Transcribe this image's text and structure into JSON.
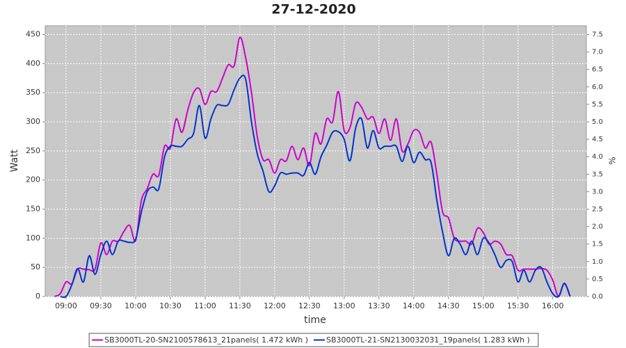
{
  "chart_data": {
    "type": "line",
    "title": "27-12-2020",
    "x_label": "time",
    "y_label": "Watt",
    "y2_label": "%",
    "x": [
      "08:50",
      "08:55",
      "09:00",
      "09:05",
      "09:10",
      "09:15",
      "09:20",
      "09:25",
      "09:30",
      "09:35",
      "09:40",
      "09:45",
      "09:50",
      "09:55",
      "10:00",
      "10:05",
      "10:10",
      "10:15",
      "10:20",
      "10:25",
      "10:30",
      "10:35",
      "10:40",
      "10:45",
      "10:50",
      "10:55",
      "11:00",
      "11:05",
      "11:10",
      "11:15",
      "11:20",
      "11:25",
      "11:30",
      "11:35",
      "11:40",
      "11:45",
      "11:50",
      "11:55",
      "12:00",
      "12:05",
      "12:10",
      "12:15",
      "12:20",
      "12:25",
      "12:30",
      "12:35",
      "12:40",
      "12:45",
      "12:50",
      "12:55",
      "13:00",
      "13:05",
      "13:10",
      "13:15",
      "13:20",
      "13:25",
      "13:30",
      "13:35",
      "13:40",
      "13:45",
      "13:50",
      "13:55",
      "14:00",
      "14:05",
      "14:10",
      "14:15",
      "14:20",
      "14:25",
      "14:30",
      "14:35",
      "14:40",
      "14:45",
      "14:50",
      "14:55",
      "15:00",
      "15:05",
      "15:10",
      "15:15",
      "15:20",
      "15:25",
      "15:30",
      "15:35",
      "15:40",
      "15:45",
      "15:50",
      "15:55",
      "16:00",
      "16:05",
      "16:10",
      "16:15"
    ],
    "series": [
      {
        "name": "SB3000TL-20-SN2100578613_21panels( 1.472 kWh )",
        "color": "#cc00cc",
        "values": [
          0,
          5,
          25,
          22,
          47,
          47,
          46,
          47,
          92,
          72,
          95,
          95,
          112,
          122,
          96,
          165,
          185,
          210,
          208,
          258,
          255,
          305,
          282,
          320,
          350,
          357,
          330,
          352,
          352,
          375,
          398,
          396,
          445,
          410,
          350,
          275,
          235,
          235,
          212,
          235,
          233,
          258,
          235,
          255,
          225,
          280,
          262,
          305,
          300,
          352,
          285,
          290,
          332,
          325,
          305,
          308,
          280,
          305,
          268,
          305,
          250,
          262,
          285,
          282,
          255,
          265,
          210,
          145,
          135,
          100,
          95,
          95,
          90,
          117,
          110,
          90,
          95,
          90,
          72,
          70,
          45,
          47,
          47,
          47,
          48,
          45,
          28,
          0,
          23,
          0
        ]
      },
      {
        "name": "SB3000TL-21-SN2130032031_19panels( 1.283 kWh )",
        "color": "#0033cc",
        "values": [
          null,
          0,
          0,
          20,
          48,
          25,
          70,
          38,
          72,
          95,
          72,
          95,
          95,
          93,
          98,
          145,
          180,
          188,
          185,
          240,
          258,
          258,
          258,
          270,
          280,
          328,
          272,
          305,
          328,
          328,
          330,
          355,
          375,
          373,
          300,
          245,
          215,
          180,
          190,
          212,
          210,
          212,
          212,
          208,
          230,
          210,
          240,
          260,
          282,
          283,
          270,
          233,
          290,
          305,
          255,
          285,
          255,
          258,
          258,
          258,
          232,
          258,
          230,
          248,
          235,
          230,
          165,
          110,
          70,
          100,
          90,
          72,
          95,
          72,
          100,
          92,
          72,
          50,
          62,
          60,
          25,
          45,
          25,
          45,
          50,
          25,
          5,
          0,
          22,
          0
        ]
      }
    ],
    "xlim": [
      "08:42",
      "16:29"
    ],
    "xticks": [
      "09:00",
      "09:30",
      "10:00",
      "10:30",
      "11:00",
      "11:30",
      "12:00",
      "12:30",
      "13:00",
      "13:30",
      "14:00",
      "14:30",
      "15:00",
      "15:30",
      "16:00"
    ],
    "ylim": [
      0,
      465
    ],
    "yticks": [
      0,
      50,
      100,
      150,
      200,
      250,
      300,
      350,
      400,
      450
    ],
    "y2lim": [
      0,
      7.75
    ],
    "y2ticks": [
      {
        "value": 0,
        "label": "0.0"
      },
      0.5,
      {
        "value": 1,
        "label": "1.0"
      },
      1.5,
      {
        "value": 2,
        "label": "2.0"
      },
      2.5,
      {
        "value": 3,
        "label": "3.0"
      },
      3.5,
      {
        "value": 4,
        "label": "4.0"
      },
      4.5,
      {
        "value": 5,
        "label": "5.0"
      },
      5.5,
      {
        "value": 6,
        "label": "6.0"
      },
      6.5,
      {
        "value": 7,
        "label": "7.0"
      },
      7.5
    ],
    "grid": true,
    "legend": "bottom"
  }
}
